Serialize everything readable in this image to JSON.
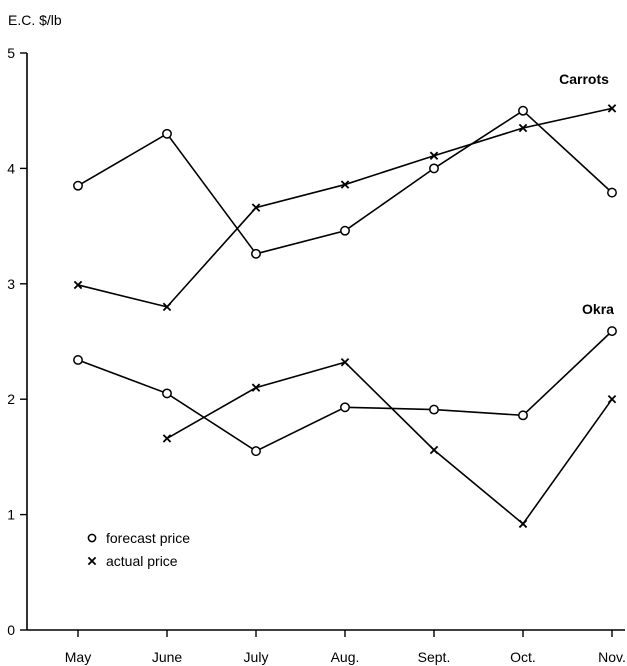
{
  "chart_data": {
    "type": "line",
    "ylabel": "E.C. $/lb",
    "ylim": [
      0,
      5
    ],
    "yticks": [
      0,
      1,
      2,
      3,
      4,
      5
    ],
    "categories": [
      "May",
      "June",
      "July",
      "Aug.",
      "Sept.",
      "Oct.",
      "Nov."
    ],
    "groups": [
      {
        "label": "Carrots",
        "series": [
          {
            "marker": "o",
            "values": [
              3.85,
              4.3,
              3.26,
              3.46,
              4.0,
              4.5,
              3.79
            ]
          },
          {
            "marker": "x",
            "values": [
              2.99,
              2.8,
              3.66,
              3.86,
              4.11,
              4.35,
              4.52
            ]
          }
        ]
      },
      {
        "label": "Okra",
        "series": [
          {
            "marker": "o",
            "values": [
              2.34,
              2.05,
              1.55,
              1.93,
              1.91,
              1.86,
              2.59
            ]
          },
          {
            "marker": "x",
            "values": [
              null,
              1.66,
              2.1,
              2.32,
              1.56,
              0.92,
              2.0
            ]
          }
        ]
      }
    ],
    "legend": {
      "position": "bottom-left",
      "entries": [
        {
          "marker": "o",
          "label": "forecast price"
        },
        {
          "marker": "x",
          "label": "actual price"
        }
      ]
    },
    "grid": false
  }
}
